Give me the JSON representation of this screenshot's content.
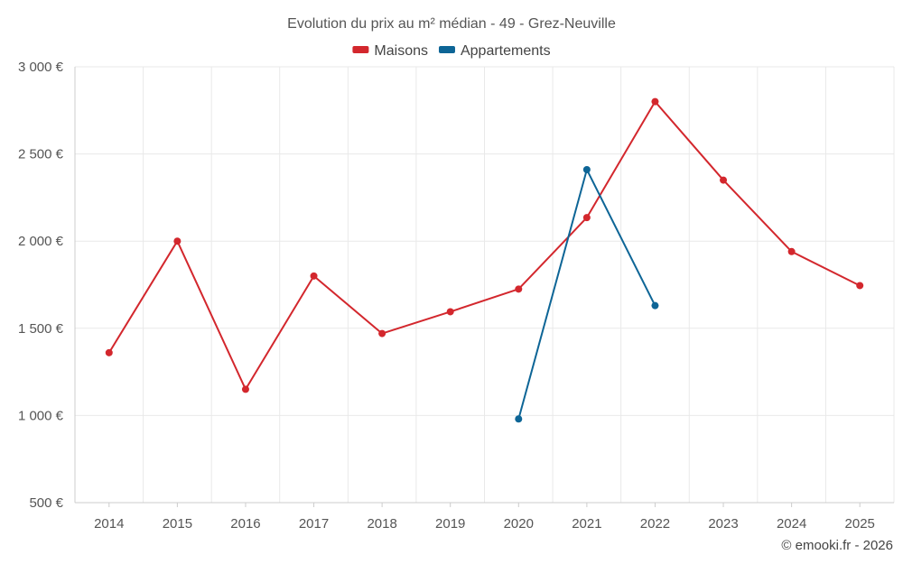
{
  "chart_data": {
    "type": "line",
    "title": "Evolution du prix au m² médian - 49 - Grez-Neuville",
    "xlabel": "",
    "ylabel": "",
    "categories": [
      "2014",
      "2015",
      "2016",
      "2017",
      "2018",
      "2019",
      "2020",
      "2021",
      "2022",
      "2023",
      "2024",
      "2025"
    ],
    "ylim": [
      500,
      3000
    ],
    "yticks": [
      500,
      1000,
      1500,
      2000,
      2500,
      3000
    ],
    "ytick_labels": [
      "500 €",
      "1 000 €",
      "1 500 €",
      "2 000 €",
      "2 500 €",
      "3 000 €"
    ],
    "grid": true,
    "legend_position": "top-center",
    "series": [
      {
        "name": "Maisons",
        "color": "#d3272d",
        "values": [
          1360,
          2000,
          1150,
          1800,
          1470,
          1595,
          1725,
          2135,
          2800,
          2350,
          1940,
          1745
        ]
      },
      {
        "name": "Appartements",
        "color": "#0d6596",
        "values": [
          null,
          null,
          null,
          null,
          null,
          null,
          980,
          2410,
          1630,
          null,
          null,
          null
        ]
      }
    ]
  },
  "credit": "© emooki.fr - 2026"
}
